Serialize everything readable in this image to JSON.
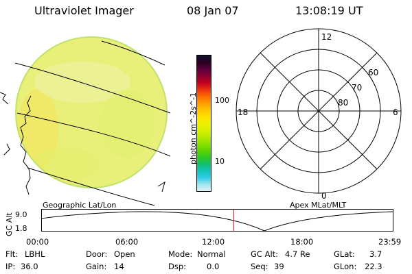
{
  "header": {
    "title": "Ultraviolet Imager",
    "date": "08 Jan 07",
    "time": "13:08:19 UT"
  },
  "colorbar": {
    "units_label": "photon cm^-2s^-1",
    "tick_labels": [
      "100",
      "10"
    ],
    "colors": [
      "#101030",
      "#2a0020",
      "#5a0040",
      "#8a0030",
      "#c00020",
      "#e63010",
      "#ff6a00",
      "#ff9a00",
      "#ffc400",
      "#ffe000",
      "#f0f000",
      "#d8f000",
      "#b8ea00",
      "#8ee000",
      "#5fd400",
      "#30c820",
      "#12c070",
      "#10c4b8",
      "#30cce8",
      "#a0e4f0",
      "#e0f4f8"
    ]
  },
  "imager": {
    "disk_color": "#e8f07a",
    "edge_color": "#bfe36a"
  },
  "polar_plot": {
    "mlt_labels": [
      "12",
      "18",
      "6",
      "0"
    ],
    "lat_labels": [
      "60",
      "70",
      "80"
    ]
  },
  "projection_labels": {
    "left": "Geographic Lat/Lon",
    "right": "Apex MLat/MLT"
  },
  "altitude_plot": {
    "ylabel": "GC Alt",
    "y_ticks": [
      "9.0",
      "1.8"
    ],
    "x_ticks": [
      "00:00",
      "06:00",
      "12:00",
      "18:00",
      "23:59"
    ],
    "current_time_marker_color": "#cc0000",
    "current_time_hours": 13.14
  },
  "info": {
    "flt_label": "Flt:",
    "flt_value": "LBHL",
    "door_label": "Door:",
    "door_value": "Open",
    "mode_label": "Mode:",
    "mode_value": "Normal",
    "gcalt_label": "GC Alt:",
    "gcalt_value": "4.7 Re",
    "glat_label": "GLat:",
    "glat_value": "3.7",
    "ip_label": "IP:",
    "ip_value": "36.0",
    "gain_label": "Gain:",
    "gain_value": "14",
    "dsp_label": "Dsp:",
    "dsp_value": "0.0",
    "seq_label": "Seq:",
    "seq_value": "39",
    "glon_label": "GLon:",
    "glon_value": "22.3"
  }
}
